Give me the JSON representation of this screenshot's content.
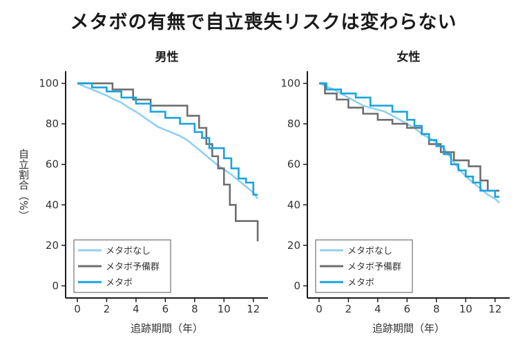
{
  "title": "メタボの有無で自立喪失リスクは変わらない",
  "colors": {
    "none": "#8fd0ef",
    "pre": "#6e6e6e",
    "metabo": "#1aa3dc"
  },
  "chart_data": [
    {
      "type": "line",
      "title": "男性",
      "xlabel": "追跡期間（年）",
      "ylabel": "自立割合（%）",
      "xlim": [
        -0.8,
        13
      ],
      "ylim": [
        -6,
        106
      ],
      "xticks": [
        0,
        2,
        4,
        6,
        8,
        10,
        12
      ],
      "yticks": [
        0,
        20,
        40,
        60,
        80,
        100
      ],
      "legend_position": "bottom-left",
      "series": [
        {
          "name": "メタボなし",
          "color_key": "none",
          "x": [
            0,
            0.5,
            1,
            1.5,
            2,
            2.5,
            3,
            3.5,
            4,
            4.5,
            5,
            5.5,
            6,
            6.5,
            7,
            7.5,
            8,
            8.5,
            9,
            9.5,
            10,
            10.5,
            11,
            11.5,
            12,
            12.3
          ],
          "y": [
            100,
            98.5,
            97,
            95.5,
            94,
            92,
            90.5,
            88,
            86,
            83.5,
            81,
            78.5,
            77,
            75.5,
            74,
            72,
            69,
            66,
            63,
            60,
            57.5,
            55,
            52,
            49,
            46,
            43
          ]
        },
        {
          "name": "メタボ予備群",
          "color_key": "pre",
          "x": [
            0,
            2.4,
            2.4,
            3.8,
            3.8,
            5.0,
            5.0,
            7.5,
            7.5,
            8.3,
            8.3,
            8.8,
            8.8,
            9.2,
            9.2,
            9.6,
            9.6,
            10.0,
            10.0,
            10.4,
            10.4,
            10.8,
            10.8,
            12.3,
            12.3
          ],
          "y": [
            100,
            100,
            97,
            97,
            92,
            92,
            89,
            89,
            84,
            84,
            78,
            78,
            70,
            70,
            64,
            64,
            58,
            58,
            50,
            50,
            40,
            40,
            32,
            32,
            22
          ]
        },
        {
          "name": "メタボ",
          "color_key": "metabo",
          "x": [
            0,
            1,
            1,
            2,
            2,
            3,
            3,
            4,
            4,
            5,
            5,
            6,
            6,
            7,
            7,
            8,
            8,
            8.5,
            8.5,
            9,
            9,
            10,
            10,
            10.5,
            10.5,
            11,
            11,
            11.5,
            11.5,
            12,
            12,
            12.3
          ],
          "y": [
            100,
            100,
            98,
            98,
            96,
            96,
            93,
            93,
            90,
            90,
            86,
            86,
            83,
            83,
            80,
            80,
            76,
            76,
            73,
            73,
            68,
            68,
            63,
            63,
            58,
            58,
            53,
            53,
            51,
            51,
            45,
            45
          ]
        }
      ]
    },
    {
      "type": "line",
      "title": "女性",
      "xlabel": "追跡期間（年）",
      "ylabel": "",
      "xlim": [
        -0.8,
        13
      ],
      "ylim": [
        -6,
        106
      ],
      "xticks": [
        0,
        2,
        4,
        6,
        8,
        10,
        12
      ],
      "yticks": [
        0,
        20,
        40,
        60,
        80,
        100
      ],
      "legend_position": "bottom-left",
      "series": [
        {
          "name": "メタボなし",
          "color_key": "none",
          "x": [
            0,
            0.5,
            1,
            1.5,
            2,
            2.5,
            3,
            3.5,
            4,
            4.5,
            5,
            5.5,
            6,
            6.5,
            7,
            7.5,
            8,
            8.5,
            9,
            9.5,
            10,
            10.5,
            11,
            11.5,
            12,
            12.3
          ],
          "y": [
            100,
            98.5,
            97,
            95,
            93,
            91,
            89,
            88,
            87,
            86,
            84,
            82,
            80,
            78,
            75,
            73,
            71,
            68,
            63,
            58,
            54,
            51,
            48,
            45,
            43,
            41
          ]
        },
        {
          "name": "メタボ予備群",
          "color_key": "pre",
          "x": [
            0,
            0.4,
            0.4,
            1.2,
            1.2,
            2,
            2,
            3,
            3,
            4,
            4,
            5,
            5,
            6,
            6,
            7,
            7,
            7.5,
            7.5,
            8.3,
            8.3,
            9.2,
            9.2,
            10.2,
            10.2,
            11,
            11,
            11.5,
            11.5,
            12.3
          ],
          "y": [
            100,
            100,
            95,
            95,
            92,
            92,
            88,
            88,
            85,
            85,
            82,
            82,
            80,
            80,
            78,
            78,
            75,
            75,
            70,
            70,
            66,
            66,
            62,
            62,
            59,
            59,
            52,
            52,
            47,
            47
          ]
        },
        {
          "name": "メタボ",
          "color_key": "metabo",
          "x": [
            0,
            0.5,
            0.5,
            1.5,
            1.5,
            2.5,
            2.5,
            3.5,
            3.5,
            5,
            5,
            6,
            6,
            6.5,
            6.5,
            7,
            7,
            7.5,
            7.5,
            8,
            8,
            8.5,
            8.5,
            9,
            9,
            9.5,
            9.5,
            10,
            10,
            10.5,
            10.5,
            11,
            11,
            12,
            12,
            12.3
          ],
          "y": [
            100,
            100,
            97,
            97,
            95,
            95,
            93,
            93,
            89,
            89,
            86,
            86,
            82,
            82,
            79,
            79,
            75,
            75,
            72,
            72,
            69,
            69,
            65,
            65,
            60,
            60,
            57,
            57,
            54,
            54,
            51,
            51,
            47,
            47,
            44,
            44
          ]
        }
      ]
    }
  ]
}
